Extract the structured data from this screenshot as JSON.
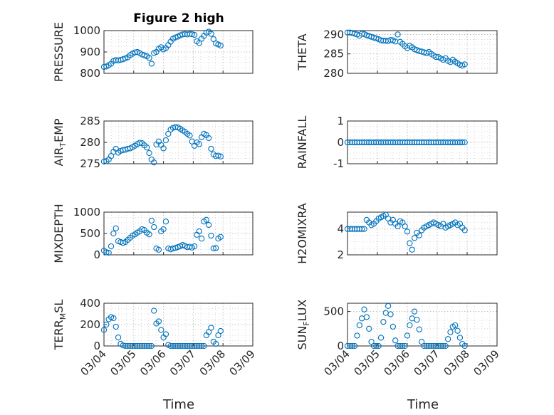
{
  "figure": {
    "title": "Figure 2 high",
    "xlabel": "Time"
  },
  "colors": {
    "marker": "#0072BD",
    "axis": "#262626",
    "grid": "#b4b4b4"
  },
  "chart_data": [
    {
      "type": "scatter",
      "ylabel": "PRESSURE",
      "xlim": [
        0,
        5
      ],
      "ylim": [
        800,
        1000
      ],
      "yticks": [
        800,
        900,
        1000
      ],
      "x": [
        0.0,
        0.08,
        0.16,
        0.24,
        0.32,
        0.4,
        0.48,
        0.56,
        0.64,
        0.72,
        0.8,
        0.88,
        0.96,
        1.04,
        1.12,
        1.2,
        1.28,
        1.36,
        1.44,
        1.52,
        1.6,
        1.68,
        1.76,
        1.84,
        1.92,
        2.0,
        2.08,
        2.16,
        2.24,
        2.32,
        2.4,
        2.48,
        2.56,
        2.64,
        2.72,
        2.8,
        2.88,
        2.96,
        3.04,
        3.12,
        3.2,
        3.28,
        3.36,
        3.44,
        3.52,
        3.6,
        3.68,
        3.76,
        3.84,
        3.92
      ],
      "y": [
        830,
        832,
        838,
        845,
        858,
        862,
        860,
        863,
        866,
        870,
        875,
        885,
        892,
        898,
        900,
        895,
        888,
        884,
        880,
        872,
        845,
        895,
        900,
        915,
        922,
        912,
        918,
        932,
        948,
        962,
        968,
        972,
        978,
        982,
        984,
        982,
        985,
        983,
        980,
        950,
        942,
        962,
        975,
        990,
        995,
        985,
        960,
        940,
        935,
        930
      ]
    },
    {
      "type": "scatter",
      "ylabel": "THETA",
      "xlim": [
        0,
        5
      ],
      "ylim": [
        280,
        291
      ],
      "yticks": [
        280,
        285,
        290
      ],
      "x": [
        0.0,
        0.08,
        0.16,
        0.24,
        0.32,
        0.4,
        0.48,
        0.56,
        0.64,
        0.72,
        0.8,
        0.88,
        0.96,
        1.04,
        1.12,
        1.2,
        1.28,
        1.36,
        1.44,
        1.52,
        1.6,
        1.68,
        1.76,
        1.84,
        1.92,
        2.0,
        2.08,
        2.16,
        2.24,
        2.32,
        2.4,
        2.48,
        2.56,
        2.64,
        2.72,
        2.8,
        2.88,
        2.96,
        3.04,
        3.12,
        3.2,
        3.28,
        3.36,
        3.44,
        3.52,
        3.6,
        3.68,
        3.76,
        3.84,
        3.92
      ],
      "y": [
        290.5,
        290.5,
        290.4,
        290.2,
        290.0,
        289.7,
        290.2,
        290.1,
        289.8,
        289.6,
        289.4,
        289.2,
        289.0,
        288.8,
        288.5,
        288.4,
        288.4,
        288.3,
        288.6,
        288.5,
        288.2,
        290.0,
        288.1,
        287.6,
        287.0,
        286.5,
        287.1,
        286.7,
        286.2,
        286.0,
        285.7,
        285.6,
        285.4,
        285.2,
        285.5,
        285.0,
        284.6,
        284.2,
        284.2,
        283.8,
        283.5,
        283.9,
        283.2,
        282.9,
        283.5,
        283.0,
        282.6,
        282.2,
        282.0,
        282.3
      ]
    },
    {
      "type": "scatter",
      "ylabel": "AIR_TEMP",
      "xlim": [
        0,
        5
      ],
      "ylim": [
        275,
        285
      ],
      "yticks": [
        275,
        280,
        285
      ],
      "x": [
        0.0,
        0.08,
        0.16,
        0.24,
        0.32,
        0.4,
        0.48,
        0.56,
        0.64,
        0.72,
        0.8,
        0.88,
        0.96,
        1.04,
        1.12,
        1.2,
        1.28,
        1.36,
        1.44,
        1.52,
        1.6,
        1.68,
        1.76,
        1.84,
        1.92,
        2.0,
        2.08,
        2.16,
        2.24,
        2.32,
        2.4,
        2.48,
        2.56,
        2.64,
        2.72,
        2.8,
        2.88,
        2.96,
        3.04,
        3.12,
        3.2,
        3.28,
        3.36,
        3.44,
        3.52,
        3.6,
        3.68,
        3.76,
        3.84,
        3.92
      ],
      "y": [
        275.5,
        275.6,
        276.0,
        276.8,
        277.8,
        278.5,
        277.6,
        278.0,
        278.2,
        278.3,
        278.5,
        278.6,
        278.9,
        279.2,
        279.6,
        279.9,
        279.8,
        279.3,
        278.8,
        277.5,
        276.0,
        275.3,
        279.5,
        280.2,
        279.4,
        278.6,
        280.5,
        282.0,
        283.0,
        283.4,
        283.6,
        283.5,
        283.2,
        282.8,
        282.5,
        282.0,
        281.6,
        280.2,
        279.2,
        280.0,
        279.6,
        281.2,
        282.0,
        281.7,
        281.0,
        278.5,
        277.2,
        276.8,
        276.9,
        276.7
      ]
    },
    {
      "type": "scatter",
      "ylabel": "RAINFALL",
      "xlim": [
        0,
        5
      ],
      "ylim": [
        -1,
        1
      ],
      "yticks": [
        -1,
        0,
        1
      ],
      "x": [
        0.0,
        0.08,
        0.16,
        0.24,
        0.32,
        0.4,
        0.48,
        0.56,
        0.64,
        0.72,
        0.8,
        0.88,
        0.96,
        1.04,
        1.12,
        1.2,
        1.28,
        1.36,
        1.44,
        1.52,
        1.6,
        1.68,
        1.76,
        1.84,
        1.92,
        2.0,
        2.08,
        2.16,
        2.24,
        2.32,
        2.4,
        2.48,
        2.56,
        2.64,
        2.72,
        2.8,
        2.88,
        2.96,
        3.04,
        3.12,
        3.2,
        3.28,
        3.36,
        3.44,
        3.52,
        3.6,
        3.68,
        3.76,
        3.84,
        3.92
      ],
      "y": [
        0,
        0,
        0,
        0,
        0,
        0,
        0,
        0,
        0,
        0,
        0,
        0,
        0,
        0,
        0,
        0,
        0,
        0,
        0,
        0,
        0,
        0,
        0,
        0,
        0,
        0,
        0,
        0,
        0,
        0,
        0,
        0,
        0,
        0,
        0,
        0,
        0,
        0,
        0,
        0,
        0,
        0,
        0,
        0,
        0,
        0,
        0,
        0,
        0,
        0
      ]
    },
    {
      "type": "scatter",
      "ylabel": "MIXDEPTH",
      "xlim": [
        0,
        5
      ],
      "ylim": [
        0,
        1000
      ],
      "yticks": [
        0,
        500,
        1000
      ],
      "x": [
        0.0,
        0.08,
        0.16,
        0.24,
        0.32,
        0.4,
        0.48,
        0.56,
        0.64,
        0.72,
        0.8,
        0.88,
        0.96,
        1.04,
        1.12,
        1.2,
        1.28,
        1.36,
        1.44,
        1.52,
        1.6,
        1.68,
        1.76,
        1.84,
        1.92,
        2.0,
        2.08,
        2.16,
        2.24,
        2.32,
        2.4,
        2.48,
        2.56,
        2.64,
        2.72,
        2.8,
        2.88,
        2.96,
        3.04,
        3.12,
        3.2,
        3.28,
        3.36,
        3.44,
        3.52,
        3.6,
        3.68,
        3.76,
        3.84,
        3.92
      ],
      "y": [
        100,
        60,
        50,
        200,
        500,
        620,
        320,
        300,
        280,
        300,
        350,
        400,
        450,
        480,
        520,
        550,
        600,
        580,
        520,
        480,
        800,
        650,
        150,
        120,
        550,
        600,
        780,
        150,
        130,
        150,
        160,
        180,
        200,
        230,
        210,
        180,
        190,
        170,
        200,
        470,
        550,
        380,
        780,
        820,
        700,
        450,
        150,
        160,
        380,
        420
      ]
    },
    {
      "type": "scatter",
      "ylabel": "H2OMIXRA",
      "xlim": [
        0,
        5
      ],
      "ylim": [
        2,
        5.3
      ],
      "yticks": [
        2,
        4
      ],
      "x": [
        0.0,
        0.08,
        0.16,
        0.24,
        0.32,
        0.4,
        0.48,
        0.56,
        0.64,
        0.72,
        0.8,
        0.88,
        0.96,
        1.04,
        1.12,
        1.2,
        1.28,
        1.36,
        1.44,
        1.52,
        1.6,
        1.68,
        1.76,
        1.84,
        1.92,
        2.0,
        2.08,
        2.16,
        2.24,
        2.32,
        2.4,
        2.48,
        2.56,
        2.64,
        2.72,
        2.8,
        2.88,
        2.96,
        3.04,
        3.12,
        3.2,
        3.28,
        3.36,
        3.44,
        3.52,
        3.6,
        3.68,
        3.76,
        3.84,
        3.92
      ],
      "y": [
        4.0,
        4.0,
        4.0,
        4.0,
        4.0,
        4.0,
        4.0,
        4.0,
        4.7,
        4.5,
        4.3,
        4.4,
        4.6,
        4.8,
        4.9,
        5.0,
        5.1,
        4.8,
        4.5,
        4.7,
        4.4,
        4.2,
        4.6,
        4.5,
        4.2,
        3.8,
        2.9,
        2.4,
        3.3,
        3.7,
        3.5,
        3.9,
        4.1,
        4.2,
        4.3,
        4.4,
        4.5,
        4.4,
        4.3,
        4.2,
        4.4,
        4.1,
        4.2,
        4.3,
        4.4,
        4.5,
        4.3,
        4.4,
        4.1,
        3.9
      ]
    },
    {
      "type": "scatter",
      "ylabel": "TERR_MSL",
      "xlim": [
        0,
        5
      ],
      "ylim": [
        0,
        400
      ],
      "yticks": [
        0,
        200,
        400
      ],
      "x": [
        0.0,
        0.08,
        0.16,
        0.24,
        0.32,
        0.4,
        0.48,
        0.56,
        0.64,
        0.72,
        0.8,
        0.88,
        0.96,
        1.04,
        1.12,
        1.2,
        1.28,
        1.36,
        1.44,
        1.52,
        1.6,
        1.68,
        1.76,
        1.84,
        1.92,
        2.0,
        2.08,
        2.16,
        2.24,
        2.32,
        2.4,
        2.48,
        2.56,
        2.64,
        2.72,
        2.8,
        2.88,
        2.96,
        3.04,
        3.12,
        3.2,
        3.28,
        3.36,
        3.44,
        3.52,
        3.6,
        3.68,
        3.76,
        3.84,
        3.92
      ],
      "y": [
        150,
        200,
        250,
        270,
        260,
        180,
        80,
        20,
        5,
        0,
        0,
        0,
        0,
        0,
        0,
        0,
        0,
        0,
        0,
        0,
        0,
        330,
        210,
        230,
        150,
        80,
        110,
        10,
        0,
        0,
        0,
        0,
        0,
        0,
        0,
        0,
        0,
        0,
        0,
        0,
        0,
        0,
        0,
        100,
        130,
        170,
        40,
        20,
        100,
        140
      ]
    },
    {
      "type": "scatter",
      "ylabel": "SUN_FLUX",
      "xlim": [
        0,
        5
      ],
      "ylim": [
        0,
        620
      ],
      "yticks": [
        0,
        500
      ],
      "x": [
        0.0,
        0.08,
        0.16,
        0.24,
        0.32,
        0.4,
        0.48,
        0.56,
        0.64,
        0.72,
        0.8,
        0.88,
        0.96,
        1.04,
        1.12,
        1.2,
        1.28,
        1.36,
        1.44,
        1.52,
        1.6,
        1.68,
        1.76,
        1.84,
        1.92,
        2.0,
        2.08,
        2.16,
        2.24,
        2.32,
        2.4,
        2.48,
        2.56,
        2.64,
        2.72,
        2.8,
        2.88,
        2.96,
        3.04,
        3.12,
        3.2,
        3.28,
        3.36,
        3.44,
        3.52,
        3.6,
        3.68,
        3.76,
        3.84,
        3.92
      ],
      "y": [
        0,
        0,
        0,
        0,
        150,
        300,
        400,
        530,
        420,
        250,
        60,
        0,
        0,
        0,
        120,
        350,
        480,
        580,
        460,
        280,
        80,
        0,
        0,
        0,
        0,
        150,
        300,
        400,
        500,
        380,
        240,
        60,
        0,
        0,
        0,
        0,
        0,
        0,
        0,
        0,
        0,
        0,
        100,
        200,
        280,
        300,
        220,
        120,
        30,
        0
      ]
    }
  ],
  "xtick_labels": [
    "03/04",
    "03/05",
    "03/06",
    "03/07",
    "03/08",
    "03/09"
  ]
}
